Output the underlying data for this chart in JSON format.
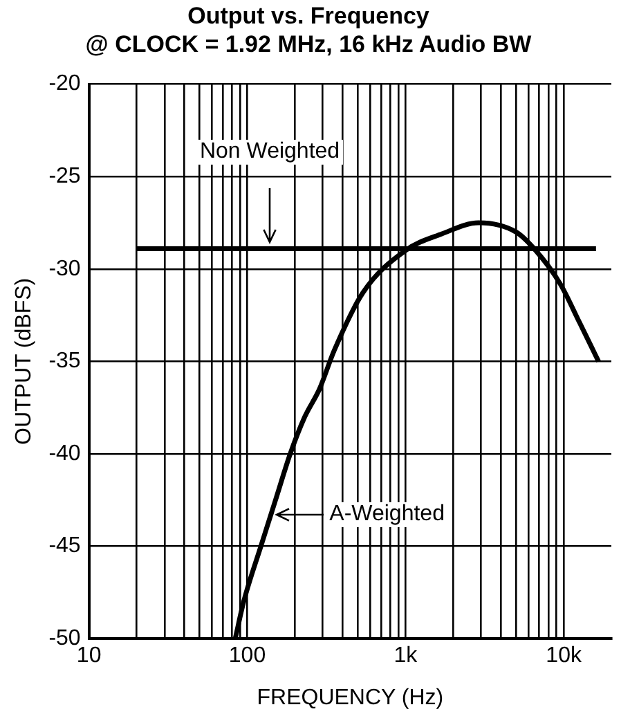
{
  "chart_data": {
    "type": "line",
    "title": "Output vs. Frequency",
    "subtitle": "@ CLOCK = 1.92 MHz, 16 kHz Audio BW",
    "xlabel": "FREQUENCY (Hz)",
    "ylabel": "OUTPUT (dBFS)",
    "log": "x",
    "grid": true,
    "legend": false,
    "marker": "none",
    "line_style": "solid",
    "xlim": [
      10,
      20000
    ],
    "xticks": [
      10,
      {
        "value": 20,
        "label": null
      },
      {
        "value": 30,
        "label": null
      },
      {
        "value": 40,
        "label": null
      },
      {
        "value": 50,
        "label": null
      },
      {
        "value": 60,
        "label": null
      },
      {
        "value": 70,
        "label": null
      },
      {
        "value": 80,
        "label": null
      },
      {
        "value": 90,
        "label": null
      },
      100,
      {
        "value": 200,
        "label": null
      },
      {
        "value": 300,
        "label": null
      },
      {
        "value": 400,
        "label": null
      },
      {
        "value": 500,
        "label": null
      },
      {
        "value": 600,
        "label": null
      },
      {
        "value": 700,
        "label": null
      },
      {
        "value": 800,
        "label": null
      },
      {
        "value": 900,
        "label": null
      },
      {
        "value": 1000,
        "label": "1k"
      },
      {
        "value": 2000,
        "label": null
      },
      {
        "value": 3000,
        "label": null
      },
      {
        "value": 4000,
        "label": null
      },
      {
        "value": 5000,
        "label": null
      },
      {
        "value": 6000,
        "label": null
      },
      {
        "value": 7000,
        "label": null
      },
      {
        "value": 8000,
        "label": null
      },
      {
        "value": 9000,
        "label": null
      },
      {
        "value": 10000,
        "label": "10k"
      }
    ],
    "ylim": [
      -50,
      -20
    ],
    "yticks": [
      -50,
      -45,
      -40,
      -35,
      -30,
      -25,
      -20
    ],
    "series": [
      {
        "color": "#000000",
        "x": [
          20,
          16000
        ],
        "values": [
          -28.9,
          -28.9
        ]
      },
      {
        "color": "#000000",
        "x": [
          84,
          95,
          122,
          151,
          187,
          231,
          286,
          355,
          537,
          1000,
          1700,
          2900,
          5000,
          6500,
          9500,
          12600,
          16600
        ],
        "values": [
          -50,
          -48,
          -45,
          -42.5,
          -40,
          -38,
          -36.5,
          -34.4,
          -31.3,
          -29,
          -28.1,
          -27.5,
          -28,
          -28.9,
          -30.8,
          -32.9,
          -35
        ]
      }
    ],
    "annotations": [
      {
        "text": "Non Weighted",
        "x": 140,
        "y": -28.9
      },
      {
        "text": "A-Weighted",
        "x": 142,
        "y": -43.3
      }
    ]
  }
}
